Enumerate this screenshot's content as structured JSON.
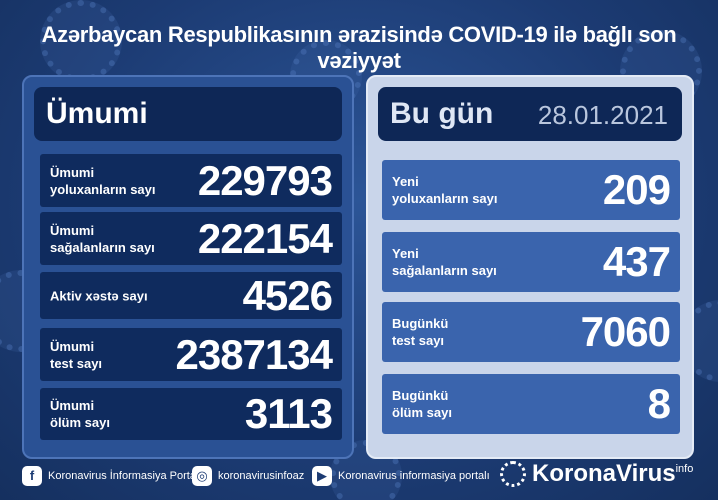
{
  "header": {
    "title": "Azərbaycan Respublikasının ərazisində COVID-19 ilə bağlı son vəziyyət"
  },
  "total": {
    "heading": "Ümumi",
    "rows": [
      {
        "label": [
          "Ümumi",
          "yoluxanların sayı"
        ],
        "value": 229793
      },
      {
        "label": [
          "Ümumi",
          "sağalanların sayı"
        ],
        "value": 222154
      },
      {
        "label": [
          "Aktiv xəstə sayı"
        ],
        "value": 4526
      },
      {
        "label": [
          "Ümumi",
          "test sayı"
        ],
        "value": 2387134
      },
      {
        "label": [
          "Ümumi",
          "ölüm sayı"
        ],
        "value": 3113
      }
    ]
  },
  "today": {
    "heading": "Bu gün",
    "date": "28.01.2021",
    "rows": [
      {
        "label": [
          "Yeni",
          "yoluxanların sayı"
        ],
        "value": 209
      },
      {
        "label": [
          "Yeni",
          "sağalanların sayı"
        ],
        "value": 437
      },
      {
        "label": [
          "Bugünkü",
          "test sayı"
        ],
        "value": 7060
      },
      {
        "label": [
          "Bugünkü",
          "ölüm sayı"
        ],
        "value": 8
      }
    ]
  },
  "footer": {
    "facebook": "Koronavirus İnformasiya Portalı",
    "instagram": "koronavirusinfoaz",
    "youtube": "Koronavirus informasiya portalı",
    "brand": "KoronaVirus",
    "brand_suffix": "info"
  }
}
